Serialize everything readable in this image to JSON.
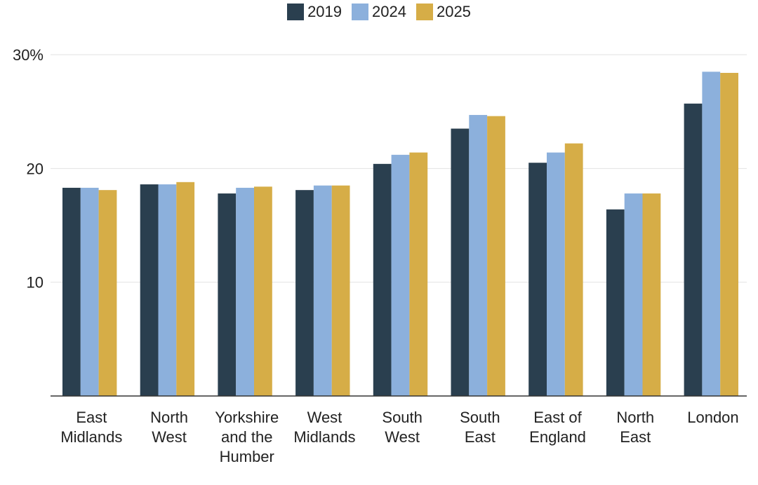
{
  "chart_data": {
    "type": "bar",
    "categories": [
      [
        "East",
        "Midlands"
      ],
      [
        "North",
        "West"
      ],
      [
        "Yorkshire",
        "and the",
        "Humber"
      ],
      [
        "West",
        "Midlands"
      ],
      [
        "South",
        "West"
      ],
      [
        "South",
        "East"
      ],
      [
        "East of",
        "England"
      ],
      [
        "North",
        "East"
      ],
      [
        "London"
      ]
    ],
    "series": [
      {
        "name": "2019",
        "color": "#2a3f4f",
        "values": [
          18.3,
          18.6,
          17.8,
          18.1,
          20.4,
          23.5,
          20.5,
          16.4,
          25.7
        ]
      },
      {
        "name": "2024",
        "color": "#8cb0dc",
        "values": [
          18.3,
          18.6,
          18.3,
          18.5,
          21.2,
          24.7,
          21.4,
          17.8,
          28.5
        ]
      },
      {
        "name": "2025",
        "color": "#d6ad47",
        "values": [
          18.1,
          18.8,
          18.4,
          18.5,
          21.4,
          24.6,
          22.2,
          17.8,
          28.4
        ]
      }
    ],
    "ylim": [
      0,
      30
    ],
    "y_ticks": [
      {
        "value": 10,
        "label": "10"
      },
      {
        "value": 20,
        "label": "20"
      },
      {
        "value": 30,
        "label": "30%"
      }
    ],
    "grid": true,
    "legend_position": "top-center",
    "title": "",
    "xlabel": "",
    "ylabel": ""
  }
}
